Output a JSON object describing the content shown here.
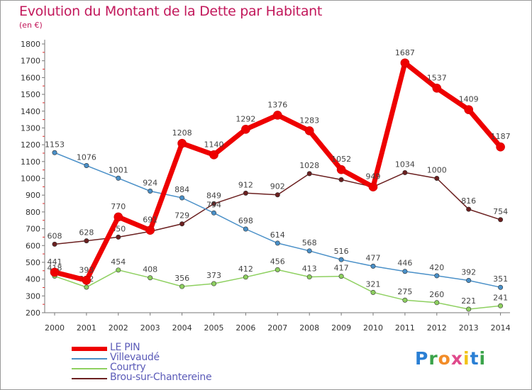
{
  "title": "Evolution du Montant de la Dette par Habitant",
  "unit": "(en €)",
  "logo": {
    "text": "Proxiti",
    "colors": [
      "#2a7fd4",
      "#3aa34a",
      "#f28c28",
      "#e04a8c",
      "#f2c218",
      "#2a7fd4",
      "#3aa34a"
    ]
  },
  "chart_data": {
    "type": "line",
    "categories": [
      "2000",
      "2001",
      "2002",
      "2003",
      "2004",
      "2005",
      "2006",
      "2007",
      "2008",
      "2009",
      "2010",
      "2011",
      "2012",
      "2013",
      "2014"
    ],
    "ylim": [
      200,
      1800
    ],
    "yticks": [
      200,
      300,
      400,
      500,
      600,
      700,
      800,
      900,
      1000,
      1100,
      1200,
      1300,
      1400,
      1500,
      1600,
      1700,
      1800
    ],
    "grid": false,
    "legend_position": "bottom-left",
    "series": [
      {
        "name": "Brou-sur-Chantereine",
        "color": "#6b2020",
        "width": 1.5,
        "marker": 3.2,
        "values": [
          608,
          628,
          650,
          684,
          729,
          849,
          912,
          902,
          1028,
          992,
          949,
          1034,
          1000,
          816,
          754
        ],
        "labels": [
          "608",
          "628",
          "650",
          "",
          "729",
          "849",
          "912",
          "902",
          "1028",
          "",
          "",
          "1034",
          "1000",
          "816",
          "754"
        ]
      },
      {
        "name": "Villevaudé",
        "color": "#4a90c8",
        "width": 1.5,
        "marker": 3.2,
        "values": [
          1153,
          1076,
          1001,
          924,
          884,
          794,
          698,
          614,
          568,
          516,
          477,
          446,
          420,
          392,
          351
        ],
        "labels": [
          "1153",
          "1076",
          "1001",
          "924",
          "884",
          "794",
          "698",
          "614",
          "568",
          "516",
          "477",
          "446",
          "420",
          "392",
          "351"
        ]
      },
      {
        "name": "Courtry",
        "color": "#8ed060",
        "width": 1.5,
        "marker": 3.2,
        "values": [
          418,
          352,
          454,
          408,
          356,
          373,
          412,
          456,
          413,
          417,
          321,
          275,
          260,
          221,
          241
        ],
        "labels": [
          "418",
          "352",
          "454",
          "408",
          "356",
          "373",
          "412",
          "456",
          "413",
          "417",
          "321",
          "275",
          "260",
          "221",
          "241"
        ]
      },
      {
        "name": "LE PIN",
        "color": "#ee0000",
        "width": 7,
        "marker": 6,
        "values": [
          441,
          393,
          770,
          691,
          1208,
          1140,
          1292,
          1376,
          1283,
          1052,
          949,
          1687,
          1537,
          1409,
          1187
        ],
        "labels": [
          "441",
          "393",
          "770",
          "691",
          "1208",
          "1140",
          "1292",
          "1376",
          "1283",
          "1052",
          "949",
          "1687",
          "1537",
          "1409",
          "1187"
        ]
      }
    ]
  }
}
